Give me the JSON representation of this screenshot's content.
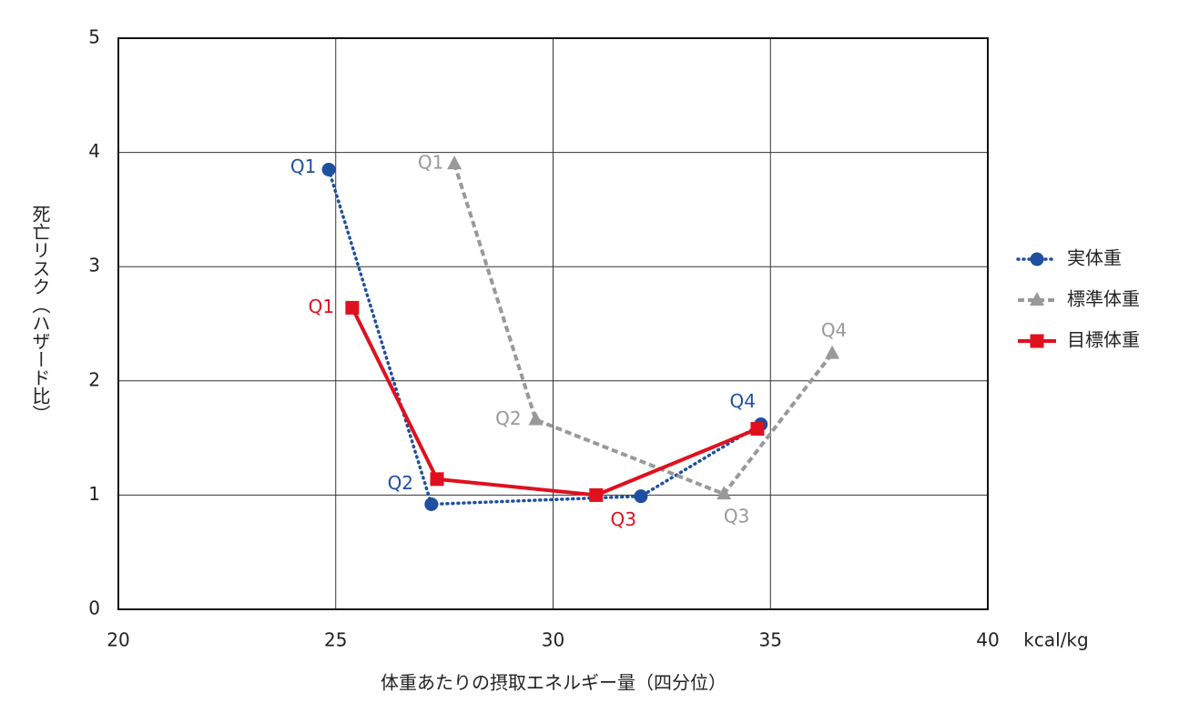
{
  "chart_data": {
    "type": "line",
    "xlabel": "体重あたりの摂取エネルギー量（四分位）",
    "ylabel": "死亡リスク（ハザード比）",
    "x_unit": "kcal/kg",
    "xlim": [
      20,
      40
    ],
    "xticks": [
      20,
      25,
      30,
      35,
      40
    ],
    "ylim": [
      0,
      5
    ],
    "yticks": [
      0,
      1,
      2,
      3,
      4,
      5
    ],
    "grid": true,
    "legend": "right",
    "series": [
      {
        "name": "実体重",
        "color": "#1f4fa0",
        "style": "dotted",
        "marker": "circle",
        "x": [
          24.84,
          27.2,
          32.02,
          34.78
        ],
        "values": [
          3.85,
          0.92,
          0.99,
          1.62
        ],
        "point_labels": [
          "Q1",
          "Q2",
          null,
          "Q4"
        ]
      },
      {
        "name": "標準体重",
        "color": "#999999",
        "style": "dashed",
        "marker": "triangle",
        "x": [
          27.73,
          29.6,
          33.93,
          36.42
        ],
        "values": [
          3.9,
          1.66,
          1.01,
          2.24
        ],
        "point_labels": [
          "Q1",
          "Q2",
          "Q3",
          "Q4"
        ]
      },
      {
        "name": "目標体重",
        "color": "#e0101e",
        "style": "solid",
        "marker": "square",
        "x": [
          25.38,
          27.33,
          30.99,
          34.7
        ],
        "values": [
          2.64,
          1.14,
          1.0,
          1.58
        ],
        "point_labels": [
          "Q1",
          null,
          "Q3",
          null
        ]
      }
    ]
  }
}
